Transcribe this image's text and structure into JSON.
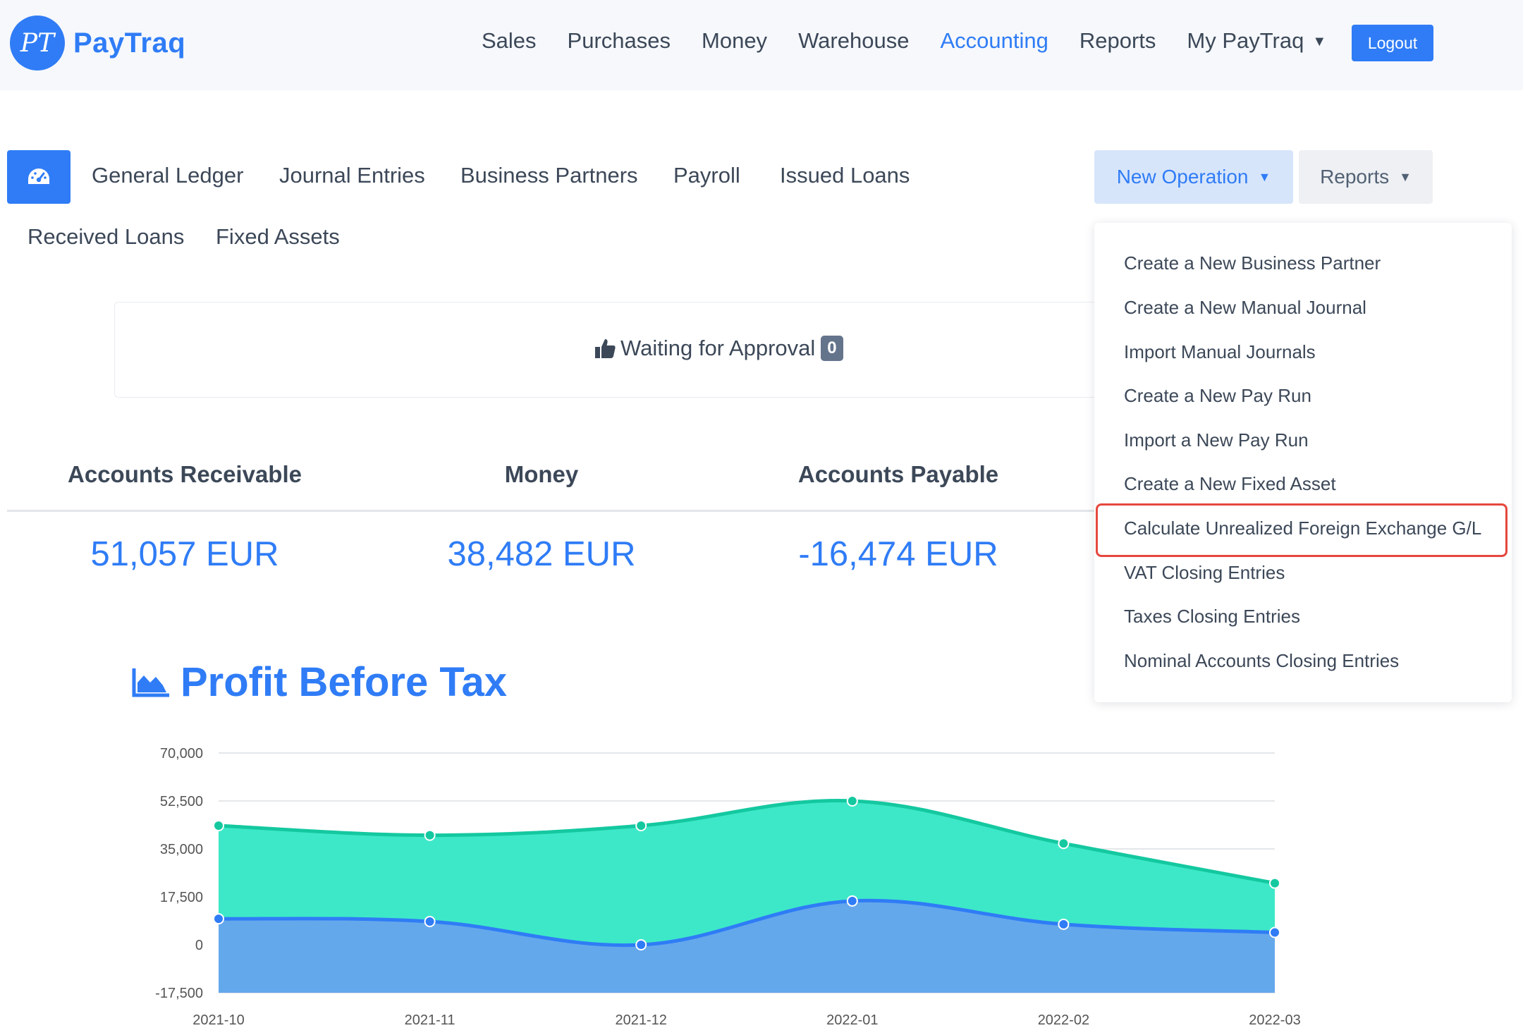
{
  "brand": {
    "logo_monogram": "PT",
    "name": "PayTraq",
    "color": "#2f7cf6"
  },
  "main_nav": {
    "items": [
      {
        "label": "Sales",
        "active": false
      },
      {
        "label": "Purchases",
        "active": false
      },
      {
        "label": "Money",
        "active": false
      },
      {
        "label": "Warehouse",
        "active": false
      },
      {
        "label": "Accounting",
        "active": true
      },
      {
        "label": "Reports",
        "active": false
      },
      {
        "label": "My PayTraq",
        "active": false,
        "has_caret": true
      }
    ],
    "logout_label": "Logout"
  },
  "sub_nav": {
    "dashboard_icon": "speedometer-icon",
    "items": [
      {
        "label": "General Ledger"
      },
      {
        "label": "Journal Entries"
      },
      {
        "label": "Business Partners"
      },
      {
        "label": "Payroll"
      },
      {
        "label": "Issued Loans"
      },
      {
        "label": "Received Loans"
      },
      {
        "label": "Fixed Assets"
      }
    ],
    "new_operation_label": "New Operation",
    "reports_label": "Reports"
  },
  "approval": {
    "icon": "thumbs-up-icon",
    "label": "Waiting for Approval",
    "count": "0"
  },
  "kpis": [
    {
      "label": "Accounts Receivable",
      "value": "51,057 EUR"
    },
    {
      "label": "Money",
      "value": "38,482 EUR"
    },
    {
      "label": "Accounts Payable",
      "value": "-16,474 EUR"
    }
  ],
  "new_operation_menu": {
    "items": [
      {
        "label": "Create a New Business Partner"
      },
      {
        "label": "Create a New Manual Journal"
      },
      {
        "label": "Import Manual Journals"
      },
      {
        "label": "Create a New Pay Run"
      },
      {
        "label": "Import a New Pay Run"
      },
      {
        "label": "Create a New Fixed Asset"
      },
      {
        "label": "Calculate Unrealized Foreign Exchange G/L",
        "highlighted": true
      },
      {
        "label": "VAT Closing Entries"
      },
      {
        "label": "Taxes Closing Entries"
      },
      {
        "label": "Nominal Accounts Closing Entries"
      }
    ],
    "highlight_color": "#e5483e"
  },
  "chart_section": {
    "icon": "area-chart-icon",
    "title": "Profit Before Tax"
  },
  "chart_data": {
    "type": "area",
    "categories": [
      "2021-10",
      "2021-11",
      "2021-12",
      "2022-01",
      "2022-02",
      "2022-03"
    ],
    "ylim": [
      -17500,
      70000
    ],
    "yticks": [
      "70,000",
      "52,500",
      "35,000",
      "17,500",
      "0",
      "-17,500"
    ],
    "ytick_values": [
      70000,
      52500,
      35000,
      17500,
      0,
      -17500
    ],
    "series": [
      {
        "values": [
          43500,
          40000,
          43500,
          52500,
          37000,
          22500
        ],
        "color": "#3de8c8",
        "line_color": "#14c8a0"
      },
      {
        "values": [
          9500,
          8500,
          0,
          16000,
          7500,
          4500
        ],
        "color": "#64a8ec",
        "line_color": "#2f7cf6"
      }
    ],
    "grid": true,
    "legend": "none"
  }
}
